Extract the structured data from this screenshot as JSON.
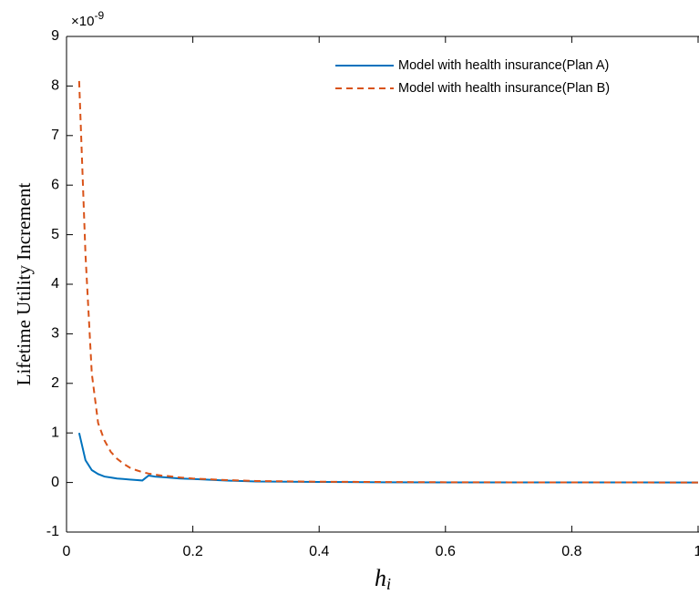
{
  "chart_data": {
    "type": "line",
    "ylabel": "Lifetime Utility Increment",
    "xlabel": "h",
    "xlabel_subscript": "i",
    "y_exponent_base": "×10",
    "y_exponent": "-9",
    "x": [
      0.02,
      0.03,
      0.04,
      0.05,
      0.06,
      0.07,
      0.08,
      0.09,
      0.1,
      0.11,
      0.12,
      0.13,
      0.14,
      0.15,
      0.16,
      0.18,
      0.2,
      0.25,
      0.3,
      0.4,
      0.5,
      0.6,
      0.7,
      0.8,
      0.9,
      1.0
    ],
    "series": [
      {
        "name": "Model with health insurance(Plan A)",
        "color": "#0072bd",
        "dash": "solid",
        "values": [
          1.0,
          0.45,
          0.25,
          0.17,
          0.12,
          0.1,
          0.08,
          0.07,
          0.06,
          0.05,
          0.04,
          0.14,
          0.12,
          0.11,
          0.1,
          0.08,
          0.07,
          0.04,
          0.02,
          0.01,
          0.005,
          0.003,
          0.002,
          0.001,
          0.001,
          0
        ]
      },
      {
        "name": "Model with health insurance(Plan B)",
        "color": "#d95319",
        "dash": "dashed",
        "values": [
          8.1,
          4.6,
          2.2,
          1.2,
          0.85,
          0.62,
          0.48,
          0.38,
          0.3,
          0.25,
          0.21,
          0.18,
          0.16,
          0.14,
          0.13,
          0.1,
          0.08,
          0.05,
          0.03,
          0.015,
          0.01,
          0.005,
          0.003,
          0.002,
          0.001,
          0
        ]
      }
    ],
    "xlim": [
      0,
      1
    ],
    "xticks": [
      0,
      0.2,
      0.4,
      0.6,
      0.8,
      1
    ],
    "ylim": [
      -1,
      9
    ],
    "yticks": [
      -1,
      0,
      1,
      2,
      3,
      4,
      5,
      6,
      7,
      8,
      9
    ],
    "grid": false,
    "legend": "top-right"
  }
}
